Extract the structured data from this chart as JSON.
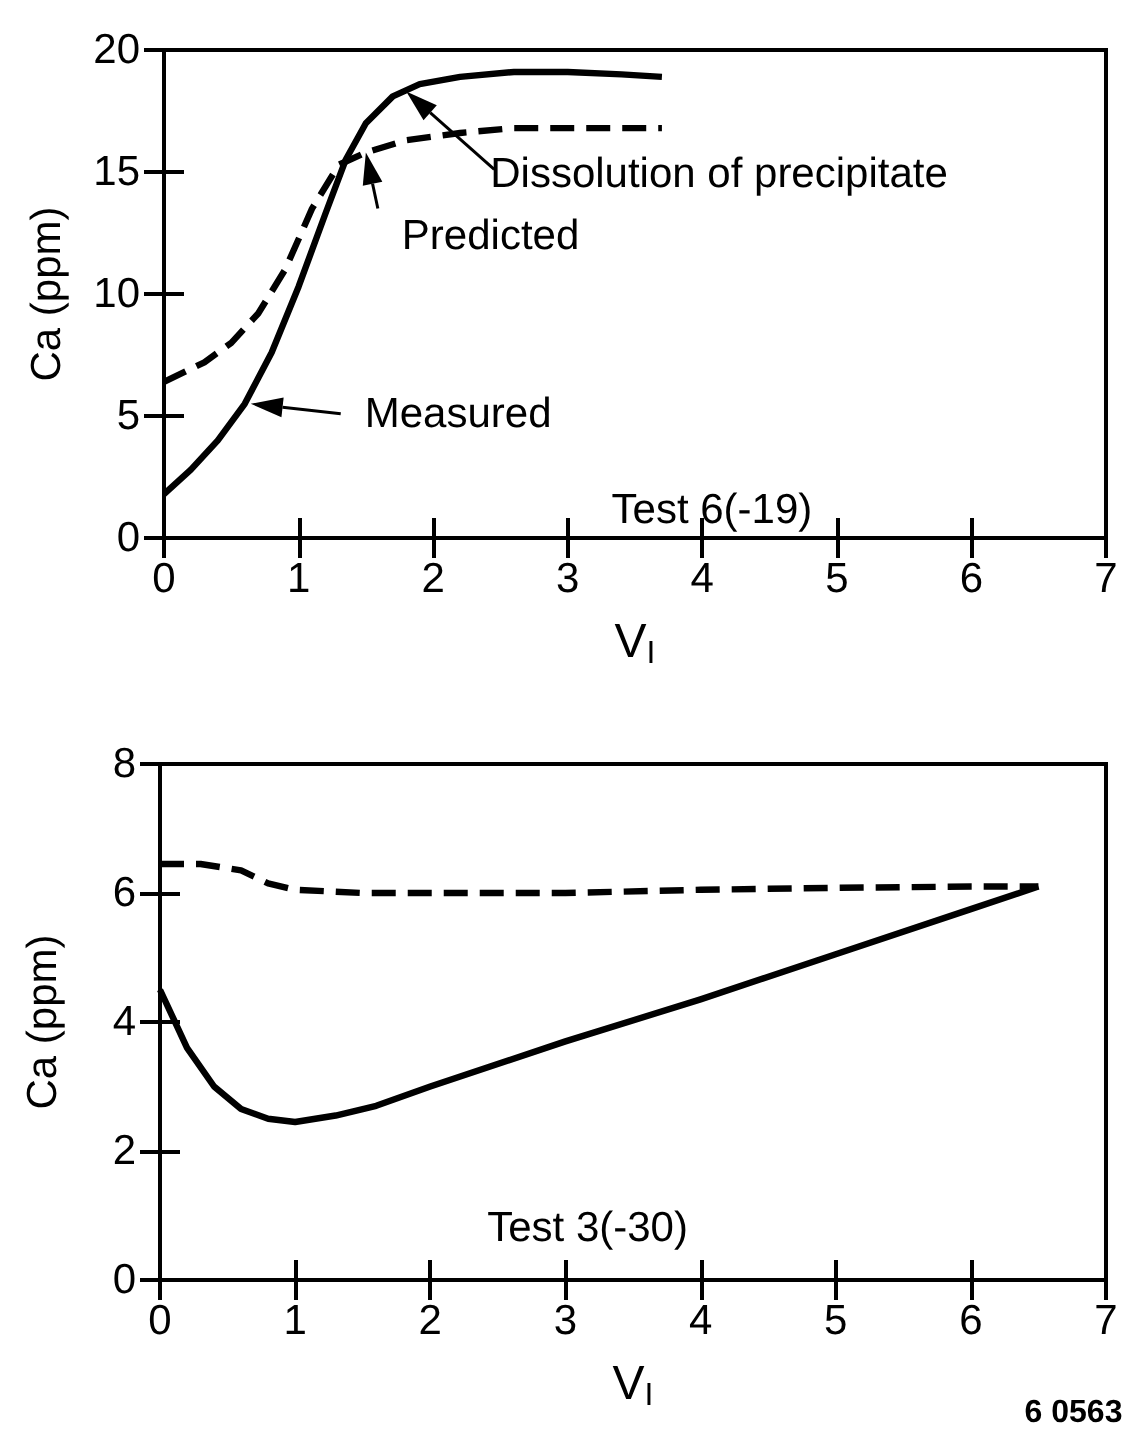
{
  "chart_data": [
    {
      "type": "line",
      "xlabel": "V$_{I}$",
      "ylabel": "Ca (ppm)",
      "xlim": [
        0,
        7
      ],
      "xticks": [
        0,
        1,
        2,
        3,
        4,
        5,
        6,
        7
      ],
      "ylim": [
        0,
        20
      ],
      "yticks": [
        0,
        5,
        10,
        15,
        20
      ],
      "grid": false,
      "marker": "none",
      "series": [
        {
          "name": "Measured",
          "color": "#000000",
          "line_style": "solid",
          "x": [
            0,
            0.2,
            0.4,
            0.6,
            0.8,
            1.0,
            1.2,
            1.35,
            1.5,
            1.7,
            1.9,
            2.2,
            2.6,
            3.0,
            3.4,
            3.7
          ],
          "values": [
            1.8,
            2.8,
            4,
            5.5,
            7.6,
            10.3,
            13.3,
            15.5,
            17,
            18.1,
            18.6,
            18.9,
            19.1,
            19.1,
            19.0,
            18.9
          ]
        },
        {
          "name": "Predicted",
          "color": "#000000",
          "line_style": "dashed",
          "x": [
            0,
            0.3,
            0.5,
            0.7,
            0.9,
            1.1,
            1.3,
            1.5,
            1.8,
            2.2,
            2.6,
            3.0,
            3.4,
            3.7
          ],
          "values": [
            6.4,
            7.2,
            8,
            9.2,
            11,
            13.5,
            15.3,
            15.8,
            16.3,
            16.6,
            16.8,
            16.8,
            16.8,
            16.8
          ]
        }
      ],
      "annotations": [
        {
          "text": "Dissolution of precipitate",
          "x": 1.8,
          "y": 18.3
        },
        "Test 6(-19)"
      ]
    },
    {
      "type": "line",
      "xlabel": "V$_{I}$",
      "ylabel": "Ca (ppm)",
      "xlim": [
        0,
        7
      ],
      "xticks": [
        0,
        1,
        2,
        3,
        4,
        5,
        6,
        7
      ],
      "ylim": [
        0,
        8
      ],
      "yticks": [
        0,
        2,
        4,
        6,
        8
      ],
      "grid": false,
      "marker": "none",
      "series": [
        {
          "color": "#000000",
          "line_style": "solid",
          "x": [
            0,
            0.2,
            0.4,
            0.6,
            0.8,
            1.0,
            1.3,
            1.6,
            2,
            3,
            4,
            5,
            6,
            6.5
          ],
          "values": [
            4.5,
            3.6,
            3.0,
            2.65,
            2.5,
            2.45,
            2.55,
            2.7,
            3.0,
            3.7,
            4.35,
            5.05,
            5.75,
            6.1
          ]
        },
        {
          "color": "#000000",
          "line_style": "dashed",
          "x": [
            0,
            0.3,
            0.6,
            0.8,
            1,
            1.5,
            2,
            3,
            4,
            5,
            6,
            6.5
          ],
          "values": [
            6.45,
            6.45,
            6.35,
            6.15,
            6.05,
            6.0,
            6.0,
            6.0,
            6.05,
            6.08,
            6.1,
            6.1
          ]
        }
      ],
      "annotations": [
        "Test 3(-30)",
        "6 0563"
      ]
    }
  ]
}
